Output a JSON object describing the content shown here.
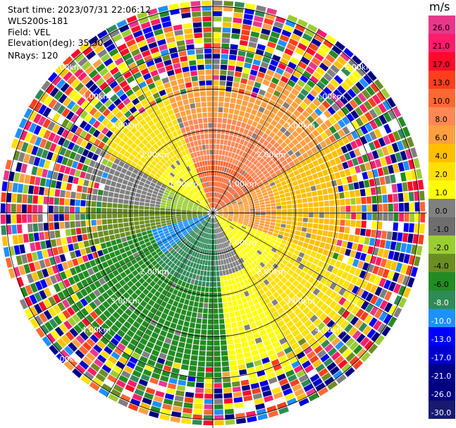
{
  "header": {
    "start_time": "Start time: 2023/07/31 22:06:12",
    "instrument": "WLS200s-181",
    "field": "Field: VEL",
    "elevation": "Elevation(deg): 35.30",
    "nrays": "NRays: 120"
  },
  "colorbar": {
    "title": "m/s",
    "ticks": [
      "26.0",
      "21.0",
      "17.0",
      "13.0",
      "10.0",
      "8.0",
      "6.0",
      "4.0",
      "2.0",
      "1.0",
      "0.0",
      "-1.0",
      "-2.0",
      "-4.0",
      "-6.0",
      "-8.0",
      "-10.0",
      "-13.0",
      "-17.0",
      "-21.0",
      "-26.0",
      "-30.0"
    ],
    "colors": [
      "#e8388c",
      "#ff1d6a",
      "#ff0a2c",
      "#ff3e1c",
      "#ff6833",
      "#ff8855",
      "#ffa040",
      "#ffbf00",
      "#ffe000",
      "#ffff00",
      "#808080",
      "#6e6e6e",
      "#9acd32",
      "#6b8e23",
      "#228b22",
      "#2e8b57",
      "#1e90ff",
      "#0000ff",
      "#0000cd",
      "#00008b",
      "#000080",
      "#191970"
    ]
  },
  "chart_data": {
    "type": "ppi",
    "field": "VEL",
    "units": "m/s",
    "nrays": 120,
    "elevation_deg": 35.3,
    "range_rings": [
      {
        "label": "1.00km",
        "label_positions": [
          "nw",
          "se",
          "ne"
        ]
      },
      {
        "label": "2.00km",
        "label_positions": [
          "nw",
          "se",
          "ne",
          "sw"
        ]
      },
      {
        "label": "3.00km",
        "label_positions": [
          "nw",
          "se",
          "ne",
          "sw"
        ]
      },
      {
        "label": "4.00km",
        "label_positions": [
          "nw",
          "se",
          "ne",
          "sw"
        ]
      },
      {
        "label": "5.00km",
        "label_positions": [
          "nw",
          "ne",
          "sw"
        ]
      }
    ],
    "approx_velocity_regions": [
      {
        "sector": "north / north-east",
        "range": "inner",
        "velocity_ms": 8
      },
      {
        "sector": "east",
        "range": "inner",
        "velocity_ms": 4
      },
      {
        "sector": "north-west",
        "range": "inner",
        "velocity_ms": 2
      },
      {
        "sector": "west",
        "range": "inner",
        "velocity_ms": -1
      },
      {
        "sector": "south-west",
        "range": "inner",
        "velocity_ms": -6
      },
      {
        "sector": "south",
        "range": "inner",
        "velocity_ms": -6
      },
      {
        "sector": "south-east",
        "range": "inner",
        "velocity_ms": 2
      }
    ],
    "outer_ranges": "noise (mixed colours)"
  }
}
